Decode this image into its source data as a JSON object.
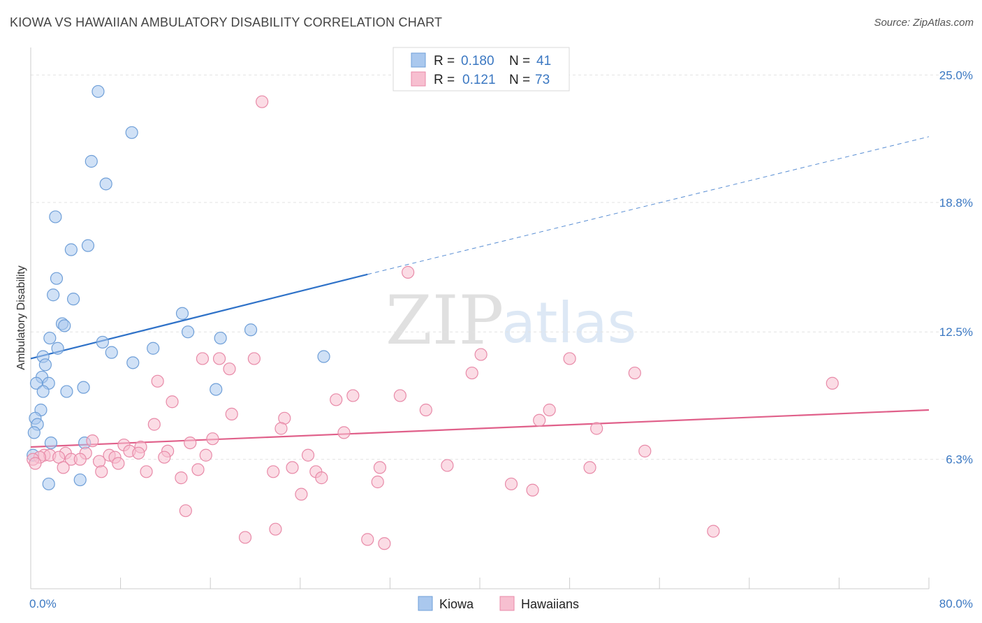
{
  "title": "KIOWA VS HAWAIIAN AMBULATORY DISABILITY CORRELATION CHART",
  "source": "Source: ZipAtlas.com",
  "watermark": {
    "zip": "ZIP",
    "atlas": "atlas"
  },
  "legend_top": {
    "rows": [
      {
        "r_label": "R =",
        "r_value": "0.180",
        "n_label": "N =",
        "n_value": "41",
        "color": "#aac8ee",
        "stroke": "#6f9fd8"
      },
      {
        "r_label": "R =",
        "r_value": "0.121",
        "n_label": "N =",
        "n_value": "73",
        "color": "#f7bfd0",
        "stroke": "#e88aa8"
      }
    ]
  },
  "legend_bottom": [
    {
      "label": "Kiowa",
      "color": "#aac8ee",
      "stroke": "#6f9fd8"
    },
    {
      "label": "Hawaiians",
      "color": "#f7bfd0",
      "stroke": "#e88aa8"
    }
  ],
  "chart_data": {
    "type": "scatter",
    "title": "KIOWA VS HAWAIIAN AMBULATORY DISABILITY CORRELATION CHART",
    "xlabel": "",
    "ylabel": "Ambulatory Disability",
    "xlim": [
      0,
      80
    ],
    "ylim": [
      0,
      26
    ],
    "x_tick_labels": [
      {
        "value": 0,
        "label": "0.0%"
      },
      {
        "value": 80,
        "label": "80.0%"
      }
    ],
    "y_tick_labels": [
      {
        "value": 6.3,
        "label": "6.3%"
      },
      {
        "value": 12.5,
        "label": "12.5%"
      },
      {
        "value": 18.8,
        "label": "18.8%"
      },
      {
        "value": 25.0,
        "label": "25.0%"
      }
    ],
    "grid": true,
    "legend_position": "top-center",
    "series": [
      {
        "name": "Kiowa",
        "color": "#6f9fd8",
        "fill": "#aac8ee",
        "trend": {
          "x": [
            0,
            30
          ],
          "y": [
            11.2,
            15.3
          ],
          "dashed_to": [
            80,
            22.0
          ],
          "color": "#2f72c8"
        },
        "points": [
          [
            6.0,
            24.2
          ],
          [
            9.0,
            22.2
          ],
          [
            5.4,
            20.8
          ],
          [
            6.7,
            19.7
          ],
          [
            2.2,
            18.1
          ],
          [
            5.1,
            16.7
          ],
          [
            3.6,
            16.5
          ],
          [
            2.3,
            15.1
          ],
          [
            2.0,
            14.3
          ],
          [
            3.8,
            14.1
          ],
          [
            13.5,
            13.4
          ],
          [
            2.8,
            12.9
          ],
          [
            3.0,
            12.8
          ],
          [
            14.0,
            12.5
          ],
          [
            19.6,
            12.6
          ],
          [
            1.7,
            12.2
          ],
          [
            16.9,
            12.2
          ],
          [
            6.4,
            12.0
          ],
          [
            2.4,
            11.7
          ],
          [
            10.9,
            11.7
          ],
          [
            7.2,
            11.5
          ],
          [
            1.1,
            11.3
          ],
          [
            26.1,
            11.3
          ],
          [
            9.1,
            11.0
          ],
          [
            1.3,
            10.9
          ],
          [
            1.0,
            10.3
          ],
          [
            0.5,
            10.0
          ],
          [
            1.6,
            10.0
          ],
          [
            4.7,
            9.8
          ],
          [
            3.2,
            9.6
          ],
          [
            1.1,
            9.6
          ],
          [
            16.5,
            9.7
          ],
          [
            0.9,
            8.7
          ],
          [
            0.4,
            8.3
          ],
          [
            0.6,
            8.0
          ],
          [
            0.3,
            7.6
          ],
          [
            1.8,
            7.1
          ],
          [
            4.8,
            7.1
          ],
          [
            0.2,
            6.5
          ],
          [
            4.4,
            5.3
          ],
          [
            1.6,
            5.1
          ]
        ]
      },
      {
        "name": "Hawaiians",
        "color": "#e88aa8",
        "fill": "#f7bfd0",
        "trend": {
          "x": [
            0,
            80
          ],
          "y": [
            6.9,
            8.7
          ],
          "color": "#e0608a"
        },
        "points": [
          [
            20.6,
            23.7
          ],
          [
            33.6,
            15.4
          ],
          [
            40.1,
            11.4
          ],
          [
            48.0,
            11.2
          ],
          [
            15.3,
            11.2
          ],
          [
            16.8,
            11.2
          ],
          [
            19.9,
            11.2
          ],
          [
            17.7,
            10.7
          ],
          [
            39.3,
            10.5
          ],
          [
            53.8,
            10.5
          ],
          [
            11.3,
            10.1
          ],
          [
            71.4,
            10.0
          ],
          [
            28.7,
            9.4
          ],
          [
            32.9,
            9.4
          ],
          [
            27.2,
            9.2
          ],
          [
            12.6,
            9.1
          ],
          [
            35.2,
            8.7
          ],
          [
            46.2,
            8.7
          ],
          [
            17.9,
            8.5
          ],
          [
            22.6,
            8.3
          ],
          [
            45.3,
            8.2
          ],
          [
            11.0,
            8.0
          ],
          [
            22.3,
            7.8
          ],
          [
            50.4,
            7.8
          ],
          [
            27.9,
            7.6
          ],
          [
            5.5,
            7.2
          ],
          [
            14.2,
            7.1
          ],
          [
            16.2,
            7.3
          ],
          [
            8.3,
            7.0
          ],
          [
            9.8,
            6.9
          ],
          [
            12.2,
            6.7
          ],
          [
            54.7,
            6.7
          ],
          [
            3.1,
            6.6
          ],
          [
            4.9,
            6.6
          ],
          [
            1.2,
            6.5
          ],
          [
            1.7,
            6.5
          ],
          [
            7.0,
            6.5
          ],
          [
            8.8,
            6.7
          ],
          [
            11.9,
            6.4
          ],
          [
            15.6,
            6.5
          ],
          [
            24.7,
            6.5
          ],
          [
            7.5,
            6.4
          ],
          [
            9.6,
            6.6
          ],
          [
            0.8,
            6.4
          ],
          [
            2.5,
            6.4
          ],
          [
            3.6,
            6.3
          ],
          [
            4.4,
            6.3
          ],
          [
            6.1,
            6.2
          ],
          [
            7.8,
            6.1
          ],
          [
            2.9,
            5.9
          ],
          [
            6.3,
            5.7
          ],
          [
            10.3,
            5.7
          ],
          [
            14.9,
            5.8
          ],
          [
            21.6,
            5.7
          ],
          [
            23.3,
            5.9
          ],
          [
            25.4,
            5.7
          ],
          [
            31.1,
            5.9
          ],
          [
            37.1,
            6.0
          ],
          [
            49.8,
            5.9
          ],
          [
            13.4,
            5.4
          ],
          [
            25.9,
            5.4
          ],
          [
            30.9,
            5.2
          ],
          [
            42.8,
            5.1
          ],
          [
            44.7,
            4.8
          ],
          [
            24.1,
            4.6
          ],
          [
            13.8,
            3.8
          ],
          [
            21.8,
            2.9
          ],
          [
            19.1,
            2.5
          ],
          [
            30.0,
            2.4
          ],
          [
            31.5,
            2.2
          ],
          [
            60.8,
            2.8
          ],
          [
            0.2,
            6.3
          ],
          [
            0.4,
            6.1
          ]
        ]
      }
    ]
  }
}
